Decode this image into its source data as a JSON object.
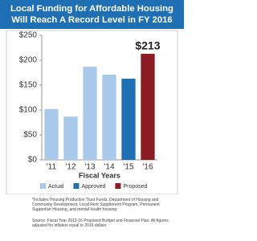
{
  "chart_data": {
    "type": "bar",
    "title_lines": [
      "Local Funding for Affordable Housing",
      "Will Reach A Record Level in FY 2016"
    ],
    "categories": [
      "'11",
      "'12",
      "'13",
      "'14",
      "'15",
      "'16"
    ],
    "values": [
      102,
      87,
      187,
      171,
      163,
      213
    ],
    "value_labels": [
      null,
      null,
      null,
      null,
      null,
      "$213"
    ],
    "colors": [
      "#a9c9ea",
      "#a9c9ea",
      "#a9c9ea",
      "#a9c9ea",
      "#1f6fb5",
      "#8c1c24"
    ],
    "legend": [
      {
        "name": "Actual",
        "color": "#a9c9ea"
      },
      {
        "name": "Approved",
        "color": "#1f6fb5"
      },
      {
        "name": "Proposed",
        "color": "#8c1c24"
      }
    ],
    "x_label": "Fiscal Years",
    "ylim": [
      0,
      250
    ],
    "yticks": [
      {
        "value": 0,
        "label": "$0"
      },
      {
        "value": 50,
        "label": "$50"
      },
      {
        "value": 100,
        "label": "$100"
      },
      {
        "value": 150,
        "label": "$150"
      },
      {
        "value": 200,
        "label": "$200"
      },
      {
        "value": 250,
        "label": "$250"
      }
    ],
    "grid": false,
    "footnote": "*Includes Housing Production Trust Funds, Department of Housing and Community Development, Local Rent Supplement Program, Permanent Supportive Housing, and mental health housing.",
    "source": "Source: Fiscal Year 2013-16 Proposed Budget and Financial Plan. All figures adjusted for inflation equal to 2016 dollars"
  }
}
